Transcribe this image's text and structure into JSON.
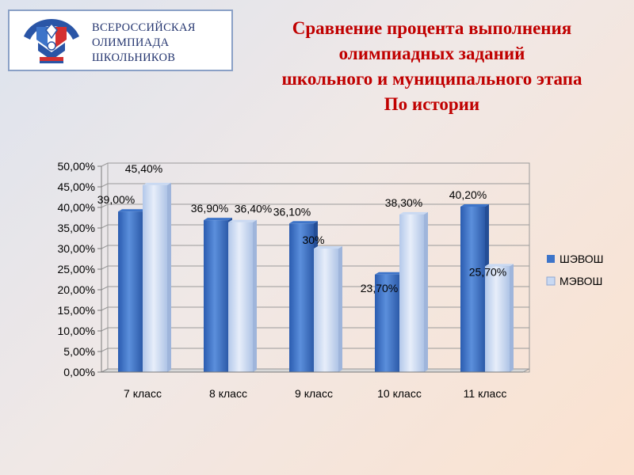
{
  "logo": {
    "lines": [
      "ВСЕРОССИЙСКАЯ",
      "ОЛИМПИАДА",
      "ШКОЛЬНИКОВ"
    ]
  },
  "title": {
    "lines": [
      "Сравнение процента выполнения",
      "олимпиадных заданий",
      "школьного и муниципального этапа",
      "По истории"
    ]
  },
  "colors": {
    "series1": "#3d74c9",
    "series2": "#c9d9f2",
    "title": "#c00000"
  },
  "chart_data": {
    "type": "bar",
    "title": "Сравнение процента выполнения олимпиадных заданий школьного и муниципального этапа По истории",
    "categories": [
      "7 класс",
      "8 класс",
      "9 класс",
      "10 класс",
      "11 класс"
    ],
    "series": [
      {
        "name": "ШЭВОШ",
        "values": [
          39.0,
          36.9,
          36.1,
          23.7,
          40.2
        ],
        "labels": [
          "39,00%",
          "36,90%",
          "36,10%",
          "23,70%",
          "40,20%"
        ]
      },
      {
        "name": "МЭВОШ",
        "values": [
          45.4,
          36.4,
          30.0,
          38.3,
          25.7
        ],
        "labels": [
          "45,40%",
          "36,40%",
          "30%",
          "38,30%",
          "25,70%"
        ]
      }
    ],
    "yticks": [
      "0,00%",
      "5,00%",
      "10,00%",
      "15,00%",
      "20,00%",
      "25,00%",
      "30,00%",
      "35,00%",
      "40,00%",
      "45,00%",
      "50,00%"
    ],
    "ylim": [
      0,
      50
    ],
    "grid": true,
    "legend": "right"
  }
}
